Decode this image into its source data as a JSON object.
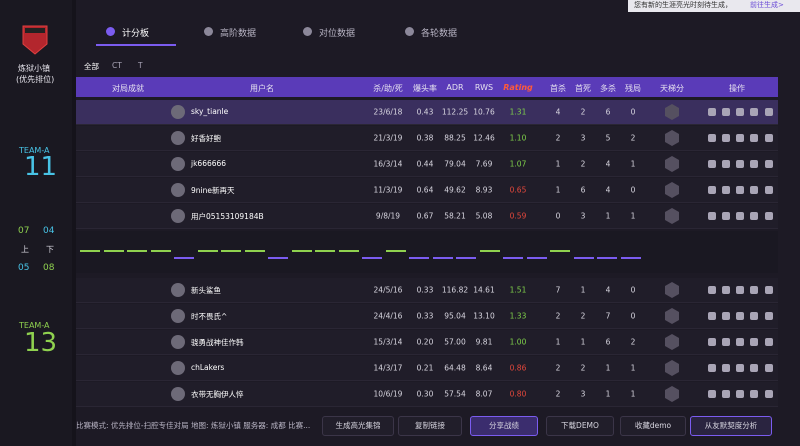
{
  "notice": {
    "text": "您有新的生涯亮光时刻待生成，",
    "link": "前往生成>"
  },
  "sidebar": {
    "map": "炼狱小镇",
    "mode": "(优先排位)",
    "team1": {
      "label": "TEAM-A",
      "score": "11"
    },
    "team2": {
      "label": "TEAM-A",
      "score": "13"
    },
    "halves": {
      "t1_first": "07",
      "t1_second": "04",
      "first": "上",
      "second": "下",
      "t2_first": "05",
      "t2_second": "08"
    }
  },
  "tabs": [
    "计分板",
    "高阶数据",
    "对位数据",
    "各轮数据"
  ],
  "filters": [
    "全部",
    "CT",
    "T"
  ],
  "table": {
    "headers": [
      "对局成就",
      "用户名",
      "杀/助/死",
      "爆头率",
      "ADR",
      "RWS",
      "Rating",
      "首杀",
      "首死",
      "多杀",
      "残局",
      "天梯分",
      "操作"
    ],
    "teams": [
      [
        [
          "sky_tianle",
          "23/6/18",
          "0.43",
          "112.25",
          "10.76",
          "1.31",
          "4",
          "2",
          "6",
          "0"
        ],
        [
          "好香好鲍",
          "21/3/19",
          "0.38",
          "88.25",
          "12.46",
          "1.10",
          "2",
          "3",
          "5",
          "2"
        ],
        [
          "jk666666",
          "16/3/14",
          "0.44",
          "79.04",
          "7.69",
          "1.07",
          "1",
          "2",
          "4",
          "1"
        ],
        [
          "9nine新再天",
          "11/3/19",
          "0.64",
          "49.62",
          "8.93",
          "0.65",
          "1",
          "6",
          "4",
          "0"
        ],
        [
          "用户05153109184B",
          "9/8/19",
          "0.67",
          "58.21",
          "5.08",
          "0.59",
          "0",
          "3",
          "1",
          "1"
        ]
      ],
      [
        [
          "新头鲨鱼",
          "24/5/16",
          "0.33",
          "116.82",
          "14.61",
          "1.51",
          "7",
          "1",
          "4",
          "0"
        ],
        [
          "时不畏氏^",
          "24/4/16",
          "0.33",
          "95.04",
          "13.10",
          "1.33",
          "2",
          "2",
          "7",
          "0"
        ],
        [
          "骁勇战神佳作韩",
          "15/3/14",
          "0.20",
          "57.00",
          "9.81",
          "1.00",
          "1",
          "1",
          "6",
          "2"
        ],
        [
          "chLakers",
          "14/3/17",
          "0.21",
          "64.48",
          "8.64",
          "0.86",
          "2",
          "2",
          "1",
          "1"
        ],
        [
          "衣带无胸伊人悴",
          "10/6/19",
          "0.30",
          "57.54",
          "8.07",
          "0.80",
          "2",
          "3",
          "1",
          "1"
        ]
      ]
    ]
  },
  "footer": {
    "info": "比赛模式: 优先排位-扫腔专佳对局 地图: 炼狱小镇 服务器: 成都 比赛...",
    "buttons": [
      "生成高光集锦",
      "复制链接",
      "分享战绩",
      "下载DEMO",
      "收藏demo",
      "从友默契度分析"
    ]
  }
}
